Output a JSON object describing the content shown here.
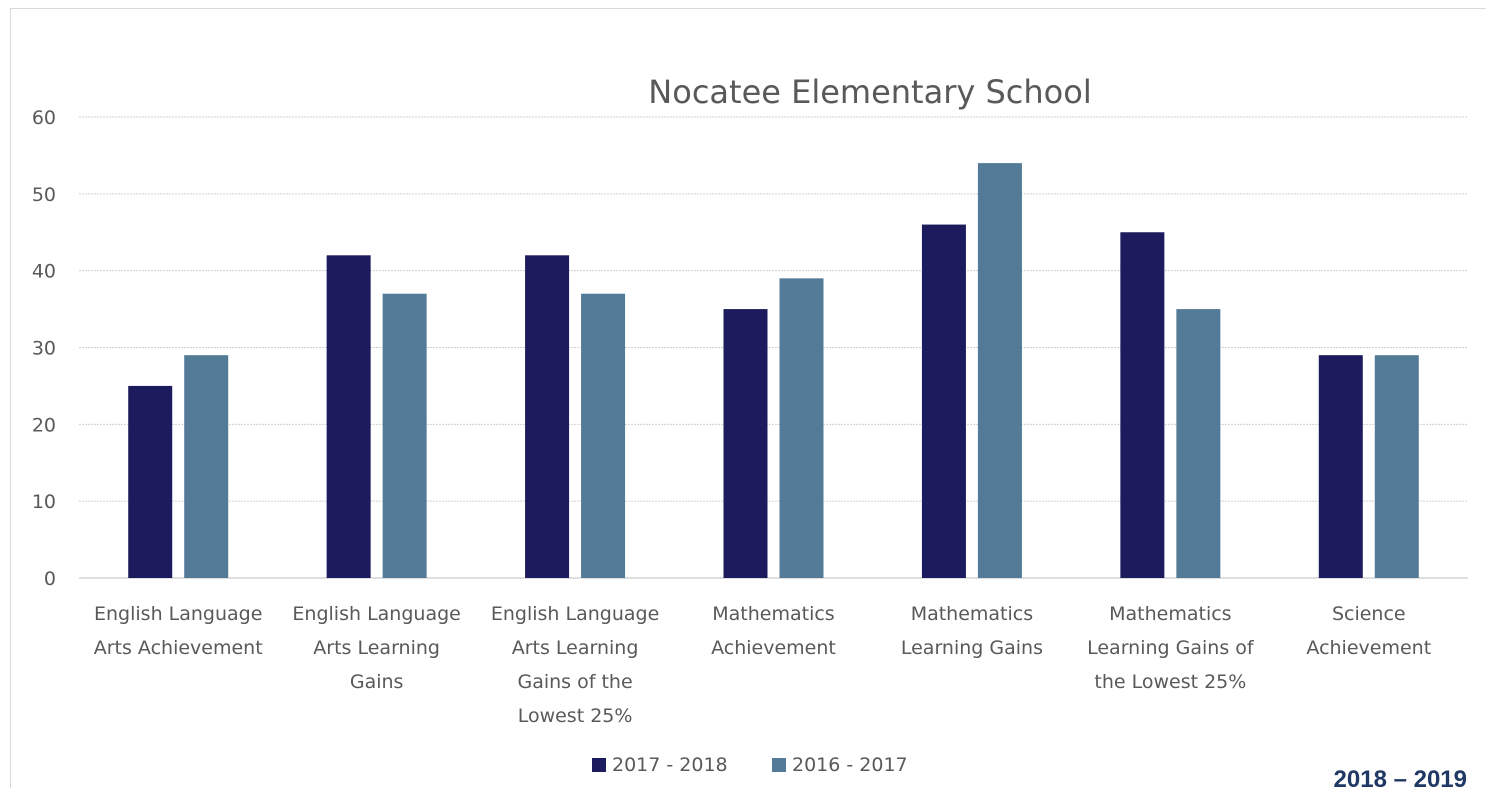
{
  "footer": {
    "year_label": "2018 – 2019"
  },
  "chart_data": {
    "type": "bar",
    "title": "Nocatee Elementary School",
    "xlabel": "",
    "ylabel": "",
    "ylim": [
      0,
      60
    ],
    "yticks": [
      0,
      10,
      20,
      30,
      40,
      50,
      60
    ],
    "grid": true,
    "legend_position": "bottom",
    "categories": [
      [
        "English Language",
        "Arts Achievement"
      ],
      [
        "English Language",
        "Arts Learning",
        "Gains"
      ],
      [
        "English Language",
        "Arts Learning",
        "Gains of the",
        "Lowest 25%"
      ],
      [
        "Mathematics",
        "Achievement"
      ],
      [
        "Mathematics",
        "Learning Gains"
      ],
      [
        "Mathematics",
        "Learning Gains of",
        "the Lowest 25%"
      ],
      [
        "Science",
        "Achievement"
      ]
    ],
    "series": [
      {
        "name": "2017 - 2018",
        "color": "#1b1b5e",
        "values": [
          25,
          42,
          42,
          35,
          46,
          45,
          29
        ]
      },
      {
        "name": "2016 - 2017",
        "color": "#537b98",
        "values": [
          29,
          37,
          37,
          39,
          54,
          35,
          29
        ]
      }
    ]
  }
}
